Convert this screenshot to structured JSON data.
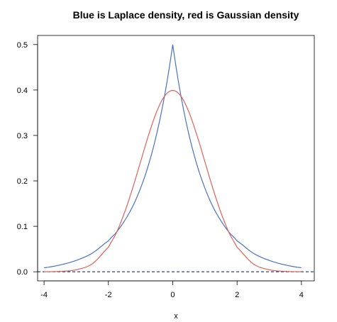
{
  "chart_data": {
    "type": "line",
    "title": "Blue is Laplace density, red is Gaussian density",
    "xlabel": "x",
    "ylabel": "",
    "xlim": [
      -4.2,
      4.4
    ],
    "ylim": [
      -0.02,
      0.52
    ],
    "x_ticks": [
      -4,
      -2,
      0,
      2,
      4
    ],
    "y_ticks": [
      0.0,
      0.1,
      0.2,
      0.3,
      0.4,
      0.5
    ],
    "x_tick_labels": [
      "-4",
      "-2",
      "0",
      "2",
      "4"
    ],
    "y_tick_labels": [
      "0.0",
      "0.1",
      "0.2",
      "0.3",
      "0.4",
      "0.5"
    ],
    "grid": false,
    "series": [
      {
        "color": "#4a72c4",
        "x": [
          -4.0,
          -3.5,
          -3.0,
          -2.5,
          -2.0,
          -1.75,
          -1.5,
          -1.25,
          -1.0,
          -0.75,
          -0.5,
          -0.25,
          0.0,
          0.25,
          0.5,
          0.75,
          1.0,
          1.25,
          1.5,
          1.75,
          2.0,
          2.5,
          3.0,
          3.5,
          4.0
        ],
        "values": [
          0.009,
          0.015,
          0.025,
          0.041,
          0.068,
          0.087,
          0.112,
          0.143,
          0.184,
          0.236,
          0.303,
          0.389,
          0.5,
          0.389,
          0.303,
          0.236,
          0.184,
          0.143,
          0.112,
          0.087,
          0.068,
          0.041,
          0.025,
          0.015,
          0.009
        ]
      },
      {
        "color": "#e0605a",
        "x": [
          -4.0,
          -3.5,
          -3.0,
          -2.5,
          -2.0,
          -1.75,
          -1.5,
          -1.25,
          -1.0,
          -0.75,
          -0.5,
          -0.25,
          0.0,
          0.25,
          0.5,
          0.75,
          1.0,
          1.25,
          1.5,
          1.75,
          2.0,
          2.5,
          3.0,
          3.5,
          4.0
        ],
        "values": [
          0.0001,
          0.0009,
          0.0044,
          0.0175,
          0.054,
          0.086,
          0.13,
          0.183,
          0.242,
          0.301,
          0.352,
          0.387,
          0.399,
          0.387,
          0.352,
          0.301,
          0.242,
          0.183,
          0.13,
          0.086,
          0.054,
          0.0175,
          0.0044,
          0.0009,
          0.0001
        ]
      }
    ],
    "reference_line": {
      "y": 0.0,
      "color": "#1a2a6c",
      "style": "dashed"
    }
  }
}
